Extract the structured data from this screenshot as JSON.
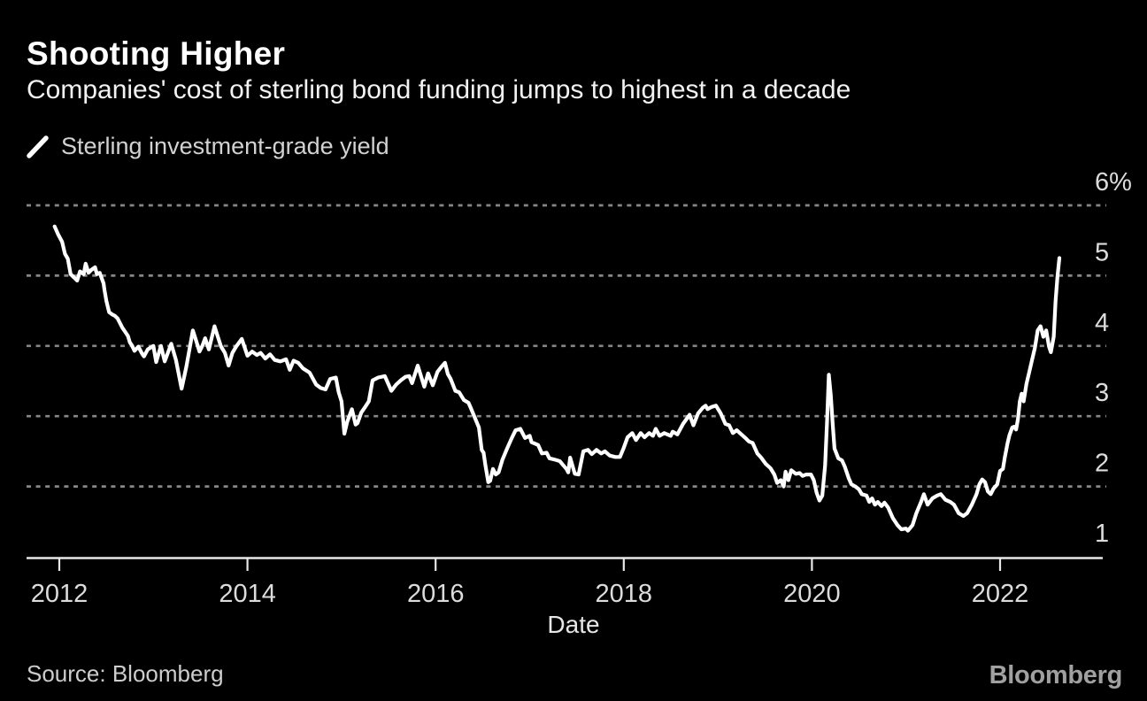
{
  "header": {
    "title": "Shooting Higher",
    "subtitle": "Companies' cost of sterling bond funding jumps to highest in a decade"
  },
  "legend": {
    "marker_icon": "thick-white-slash-line-sample",
    "label": "Sterling investment-grade yield"
  },
  "footer": {
    "source": "Source: Bloomberg",
    "brand": "Bloomberg"
  },
  "colors": {
    "background": "#000000",
    "title": "#ffffff",
    "subtitle": "#f2f2f2",
    "legend_text": "#d2d2d2",
    "series_line": "#ffffff",
    "gridline": "#878787",
    "axis": "#e8e8e8",
    "tick_labels": "#dcdcdc",
    "source_text": "#cdcdcd",
    "brand_logo": "#a0a0a0"
  },
  "chart_data": {
    "type": "line",
    "title": "Shooting Higher",
    "subtitle": "Companies' cost of sterling bond funding jumps to highest in a decade",
    "xlabel": "Date",
    "ylabel": "",
    "y_unit": "%",
    "grid": "horizontal-dotted",
    "legend_position": "top-left",
    "xlim": [
      2011.9,
      2023.1
    ],
    "ylim": [
      0.97,
      6.5
    ],
    "x_ticks": [
      2012,
      2014,
      2016,
      2018,
      2020,
      2022
    ],
    "y_ticks": [
      {
        "value": 6,
        "label": "6%",
        "gridline": true
      },
      {
        "value": 5,
        "label": "5",
        "gridline": true
      },
      {
        "value": 4,
        "label": "4",
        "gridline": true
      },
      {
        "value": 3,
        "label": "3",
        "gridline": true
      },
      {
        "value": 2,
        "label": "2",
        "gridline": true
      },
      {
        "value": 1,
        "label": "1",
        "gridline": false
      }
    ],
    "series": [
      {
        "name": "Sterling investment-grade yield",
        "color": "#ffffff",
        "points": [
          [
            2011.95,
            5.7
          ],
          [
            2011.99,
            5.58
          ],
          [
            2012.03,
            5.48
          ],
          [
            2012.06,
            5.31
          ],
          [
            2012.09,
            5.24
          ],
          [
            2012.12,
            5.02
          ],
          [
            2012.16,
            4.97
          ],
          [
            2012.19,
            4.93
          ],
          [
            2012.22,
            5.06
          ],
          [
            2012.26,
            5.02
          ],
          [
            2012.28,
            5.17
          ],
          [
            2012.31,
            5.04
          ],
          [
            2012.34,
            5.08
          ],
          [
            2012.38,
            5.12
          ],
          [
            2012.4,
            5.02
          ],
          [
            2012.43,
            5.04
          ],
          [
            2012.47,
            4.89
          ],
          [
            2012.48,
            4.8
          ],
          [
            2012.5,
            4.64
          ],
          [
            2012.53,
            4.48
          ],
          [
            2012.56,
            4.45
          ],
          [
            2012.59,
            4.43
          ],
          [
            2012.62,
            4.39
          ],
          [
            2012.67,
            4.26
          ],
          [
            2012.71,
            4.18
          ],
          [
            2012.73,
            4.14
          ],
          [
            2012.75,
            4.05
          ],
          [
            2012.77,
            4.01
          ],
          [
            2012.8,
            3.93
          ],
          [
            2012.84,
            3.99
          ],
          [
            2012.88,
            3.89
          ],
          [
            2012.9,
            3.85
          ],
          [
            2012.94,
            3.95
          ],
          [
            2013.0,
            4.0
          ],
          [
            2013.03,
            3.77
          ],
          [
            2013.08,
            4.0
          ],
          [
            2013.12,
            3.78
          ],
          [
            2013.19,
            4.03
          ],
          [
            2013.24,
            3.8
          ],
          [
            2013.3,
            3.39
          ],
          [
            2013.35,
            3.7
          ],
          [
            2013.39,
            4.0
          ],
          [
            2013.42,
            4.22
          ],
          [
            2013.46,
            4.05
          ],
          [
            2013.49,
            3.92
          ],
          [
            2013.52,
            4.0
          ],
          [
            2013.55,
            4.11
          ],
          [
            2013.59,
            3.95
          ],
          [
            2013.65,
            4.28
          ],
          [
            2013.68,
            4.15
          ],
          [
            2013.72,
            3.99
          ],
          [
            2013.76,
            3.9
          ],
          [
            2013.8,
            3.72
          ],
          [
            2013.84,
            3.9
          ],
          [
            2013.88,
            3.99
          ],
          [
            2013.94,
            4.1
          ],
          [
            2014.0,
            3.86
          ],
          [
            2014.05,
            3.92
          ],
          [
            2014.1,
            3.87
          ],
          [
            2014.14,
            3.9
          ],
          [
            2014.19,
            3.82
          ],
          [
            2014.24,
            3.88
          ],
          [
            2014.29,
            3.8
          ],
          [
            2014.35,
            3.78
          ],
          [
            2014.41,
            3.81
          ],
          [
            2014.45,
            3.66
          ],
          [
            2014.49,
            3.79
          ],
          [
            2014.54,
            3.76
          ],
          [
            2014.59,
            3.68
          ],
          [
            2014.66,
            3.62
          ],
          [
            2014.73,
            3.45
          ],
          [
            2014.78,
            3.4
          ],
          [
            2014.83,
            3.38
          ],
          [
            2014.88,
            3.53
          ],
          [
            2014.94,
            3.55
          ],
          [
            2014.97,
            3.34
          ],
          [
            2015.0,
            3.21
          ],
          [
            2015.03,
            2.75
          ],
          [
            2015.06,
            2.92
          ],
          [
            2015.11,
            3.1
          ],
          [
            2015.15,
            2.88
          ],
          [
            2015.17,
            2.9
          ],
          [
            2015.21,
            3.05
          ],
          [
            2015.25,
            3.13
          ],
          [
            2015.29,
            3.21
          ],
          [
            2015.33,
            3.51
          ],
          [
            2015.39,
            3.55
          ],
          [
            2015.46,
            3.57
          ],
          [
            2015.53,
            3.36
          ],
          [
            2015.58,
            3.45
          ],
          [
            2015.63,
            3.51
          ],
          [
            2015.68,
            3.56
          ],
          [
            2015.72,
            3.57
          ],
          [
            2015.75,
            3.47
          ],
          [
            2015.81,
            3.72
          ],
          [
            2015.88,
            3.42
          ],
          [
            2015.92,
            3.61
          ],
          [
            2015.97,
            3.44
          ],
          [
            2016.02,
            3.63
          ],
          [
            2016.06,
            3.7
          ],
          [
            2016.1,
            3.76
          ],
          [
            2016.13,
            3.6
          ],
          [
            2016.16,
            3.53
          ],
          [
            2016.21,
            3.36
          ],
          [
            2016.25,
            3.34
          ],
          [
            2016.3,
            3.23
          ],
          [
            2016.35,
            3.19
          ],
          [
            2016.37,
            3.13
          ],
          [
            2016.41,
            3.0
          ],
          [
            2016.46,
            2.84
          ],
          [
            2016.49,
            2.52
          ],
          [
            2016.51,
            2.48
          ],
          [
            2016.53,
            2.3
          ],
          [
            2016.56,
            2.06
          ],
          [
            2016.58,
            2.08
          ],
          [
            2016.61,
            2.25
          ],
          [
            2016.64,
            2.17
          ],
          [
            2016.67,
            2.2
          ],
          [
            2016.71,
            2.38
          ],
          [
            2016.76,
            2.54
          ],
          [
            2016.81,
            2.69
          ],
          [
            2016.85,
            2.8
          ],
          [
            2016.9,
            2.82
          ],
          [
            2016.95,
            2.69
          ],
          [
            2017.0,
            2.72
          ],
          [
            2017.02,
            2.63
          ],
          [
            2017.09,
            2.59
          ],
          [
            2017.13,
            2.47
          ],
          [
            2017.18,
            2.48
          ],
          [
            2017.21,
            2.4
          ],
          [
            2017.27,
            2.38
          ],
          [
            2017.32,
            2.36
          ],
          [
            2017.39,
            2.25
          ],
          [
            2017.41,
            2.2
          ],
          [
            2017.43,
            2.41
          ],
          [
            2017.48,
            2.18
          ],
          [
            2017.52,
            2.17
          ],
          [
            2017.57,
            2.5
          ],
          [
            2017.62,
            2.52
          ],
          [
            2017.66,
            2.46
          ],
          [
            2017.71,
            2.52
          ],
          [
            2017.76,
            2.47
          ],
          [
            2017.8,
            2.5
          ],
          [
            2017.85,
            2.44
          ],
          [
            2017.91,
            2.42
          ],
          [
            2017.96,
            2.42
          ],
          [
            2018.0,
            2.55
          ],
          [
            2018.04,
            2.7
          ],
          [
            2018.09,
            2.76
          ],
          [
            2018.13,
            2.66
          ],
          [
            2018.18,
            2.76
          ],
          [
            2018.22,
            2.7
          ],
          [
            2018.27,
            2.76
          ],
          [
            2018.31,
            2.72
          ],
          [
            2018.34,
            2.82
          ],
          [
            2018.38,
            2.72
          ],
          [
            2018.43,
            2.76
          ],
          [
            2018.5,
            2.72
          ],
          [
            2018.52,
            2.78
          ],
          [
            2018.57,
            2.74
          ],
          [
            2018.63,
            2.89
          ],
          [
            2018.7,
            3.02
          ],
          [
            2018.74,
            2.87
          ],
          [
            2018.79,
            3.04
          ],
          [
            2018.84,
            3.12
          ],
          [
            2018.87,
            3.15
          ],
          [
            2018.89,
            3.1
          ],
          [
            2018.93,
            3.13
          ],
          [
            2018.98,
            3.15
          ],
          [
            2019.03,
            3.04
          ],
          [
            2019.08,
            2.89
          ],
          [
            2019.12,
            2.87
          ],
          [
            2019.16,
            2.76
          ],
          [
            2019.2,
            2.8
          ],
          [
            2019.25,
            2.74
          ],
          [
            2019.3,
            2.68
          ],
          [
            2019.33,
            2.64
          ],
          [
            2019.37,
            2.62
          ],
          [
            2019.42,
            2.47
          ],
          [
            2019.46,
            2.41
          ],
          [
            2019.51,
            2.32
          ],
          [
            2019.56,
            2.26
          ],
          [
            2019.6,
            2.17
          ],
          [
            2019.63,
            2.05
          ],
          [
            2019.67,
            2.09
          ],
          [
            2019.7,
            2.0
          ],
          [
            2019.72,
            2.21
          ],
          [
            2019.75,
            2.09
          ],
          [
            2019.78,
            2.23
          ],
          [
            2019.83,
            2.18
          ],
          [
            2019.87,
            2.19
          ],
          [
            2019.9,
            2.15
          ],
          [
            2019.94,
            2.17
          ],
          [
            2019.99,
            2.17
          ],
          [
            2020.02,
            2.09
          ],
          [
            2020.05,
            1.91
          ],
          [
            2020.08,
            1.8
          ],
          [
            2020.11,
            1.87
          ],
          [
            2020.14,
            2.3
          ],
          [
            2020.16,
            2.9
          ],
          [
            2020.18,
            3.59
          ],
          [
            2020.2,
            3.3
          ],
          [
            2020.22,
            2.9
          ],
          [
            2020.24,
            2.54
          ],
          [
            2020.28,
            2.4
          ],
          [
            2020.32,
            2.37
          ],
          [
            2020.35,
            2.28
          ],
          [
            2020.39,
            2.12
          ],
          [
            2020.42,
            2.03
          ],
          [
            2020.46,
            2.0
          ],
          [
            2020.5,
            1.96
          ],
          [
            2020.53,
            1.89
          ],
          [
            2020.58,
            1.87
          ],
          [
            2020.61,
            1.78
          ],
          [
            2020.64,
            1.83
          ],
          [
            2020.67,
            1.74
          ],
          [
            2020.7,
            1.78
          ],
          [
            2020.74,
            1.72
          ],
          [
            2020.77,
            1.77
          ],
          [
            2020.81,
            1.7
          ],
          [
            2020.86,
            1.55
          ],
          [
            2020.91,
            1.45
          ],
          [
            2020.95,
            1.39
          ],
          [
            2021.0,
            1.4
          ],
          [
            2021.02,
            1.37
          ],
          [
            2021.07,
            1.45
          ],
          [
            2021.11,
            1.62
          ],
          [
            2021.16,
            1.78
          ],
          [
            2021.19,
            1.89
          ],
          [
            2021.23,
            1.74
          ],
          [
            2021.28,
            1.83
          ],
          [
            2021.33,
            1.87
          ],
          [
            2021.37,
            1.89
          ],
          [
            2021.42,
            1.81
          ],
          [
            2021.47,
            1.78
          ],
          [
            2021.51,
            1.74
          ],
          [
            2021.56,
            1.62
          ],
          [
            2021.61,
            1.58
          ],
          [
            2021.65,
            1.62
          ],
          [
            2021.7,
            1.74
          ],
          [
            2021.75,
            1.89
          ],
          [
            2021.78,
            2.03
          ],
          [
            2021.81,
            2.1
          ],
          [
            2021.84,
            2.06
          ],
          [
            2021.87,
            1.93
          ],
          [
            2021.9,
            1.89
          ],
          [
            2021.93,
            1.97
          ],
          [
            2021.97,
            2.03
          ],
          [
            2022.0,
            2.22
          ],
          [
            2022.03,
            2.25
          ],
          [
            2022.05,
            2.41
          ],
          [
            2022.08,
            2.62
          ],
          [
            2022.1,
            2.73
          ],
          [
            2022.13,
            2.84
          ],
          [
            2022.15,
            2.85
          ],
          [
            2022.17,
            2.81
          ],
          [
            2022.19,
            2.96
          ],
          [
            2022.21,
            3.21
          ],
          [
            2022.23,
            3.32
          ],
          [
            2022.25,
            3.21
          ],
          [
            2022.28,
            3.46
          ],
          [
            2022.31,
            3.63
          ],
          [
            2022.34,
            3.8
          ],
          [
            2022.37,
            3.97
          ],
          [
            2022.4,
            4.22
          ],
          [
            2022.43,
            4.28
          ],
          [
            2022.46,
            4.13
          ],
          [
            2022.49,
            4.22
          ],
          [
            2022.52,
            3.99
          ],
          [
            2022.54,
            3.91
          ],
          [
            2022.57,
            4.13
          ],
          [
            2022.59,
            4.64
          ],
          [
            2022.61,
            4.98
          ],
          [
            2022.63,
            5.25
          ]
        ]
      }
    ]
  }
}
